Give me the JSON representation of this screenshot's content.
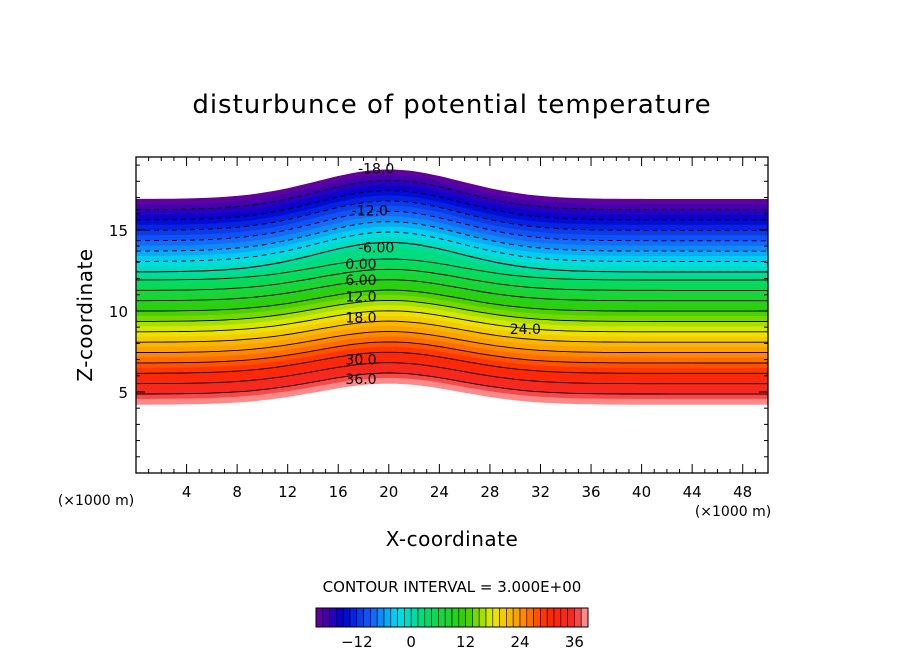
{
  "chart_data": {
    "type": "contour",
    "title": "disturbunce of potential temperature",
    "xlabel": "X-coordinate",
    "ylabel": "Z-coordinate",
    "x_unit": "(×1000 m)",
    "y_unit": "(×1000 m)",
    "xlim": [
      0,
      50
    ],
    "ylim": [
      0,
      19.5
    ],
    "x_ticks": [
      4,
      8,
      12,
      16,
      20,
      24,
      28,
      32,
      36,
      40,
      44,
      48
    ],
    "x_tick_labels": [
      "4",
      "8",
      "12",
      "16",
      "20",
      "24",
      "28",
      "32",
      "36",
      "40",
      "44",
      "48"
    ],
    "y_ticks": [
      5,
      10,
      15
    ],
    "y_tick_labels": [
      "5",
      "10",
      "15"
    ],
    "contour_interval_text": "CONTOUR INTERVAL = 3.000E+00",
    "contour_interval": 3,
    "value_range": [
      -21,
      39
    ],
    "contour_labels": [
      {
        "text": "-18.0",
        "x": 19,
        "z": 18.8
      },
      {
        "text": "-12.0",
        "x": 18.5,
        "z": 16.2
      },
      {
        "text": "-6.00",
        "x": 19,
        "z": 13.9
      },
      {
        "text": "0.00",
        "x": 17.8,
        "z": 12.9
      },
      {
        "text": "6.00",
        "x": 17.8,
        "z": 11.9
      },
      {
        "text": "12.0",
        "x": 17.8,
        "z": 10.9
      },
      {
        "text": "18.0",
        "x": 17.8,
        "z": 9.6
      },
      {
        "text": "24.0",
        "x": 30.8,
        "z": 8.9
      },
      {
        "text": "30.0",
        "x": 17.8,
        "z": 7.0
      },
      {
        "text": "36.0",
        "x": 17.8,
        "z": 5.8
      }
    ],
    "colorbar": {
      "ticks": [
        -12,
        0,
        12,
        24,
        36
      ],
      "tick_labels": [
        "−12",
        "0",
        "12",
        "24",
        "36"
      ]
    }
  }
}
